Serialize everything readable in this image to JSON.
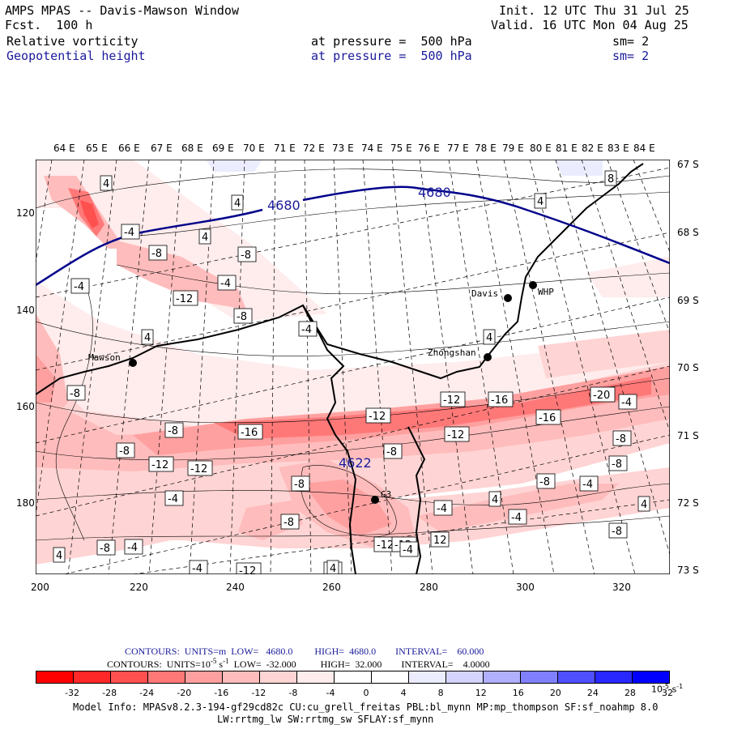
{
  "header": {
    "title": "AMPS MPAS -- Davis-Mawson Window",
    "forecast": "Fcst.  100 h",
    "init": "Init. 12 UTC Thu 31 Jul 25",
    "valid": "Valid. 16 UTC Mon 04 Aug 25",
    "field1_name": "Relative vorticity",
    "field1_level": "at pressure =  500 hPa",
    "field1_sm": "sm= 2",
    "field2_name": "Geopotential height",
    "field2_level": "at pressure =  500 hPa",
    "field2_sm": "sm= 2"
  },
  "axes": {
    "top_lon_labels": [
      "64 E",
      "65 E",
      "66 E",
      "67 E",
      "68 E",
      "69 E",
      "70 E",
      "71 E",
      "72 E",
      "73 E",
      "74 E",
      "75 E",
      "76 E",
      "77 E",
      "78 E",
      "79 E",
      "80 E",
      "81 E",
      "82 E",
      "83 E",
      "84 E"
    ],
    "right_lat_labels": [
      "67 S",
      "68 S",
      "69 S",
      "70 S",
      "71 S",
      "72 S",
      "73 S"
    ],
    "left_y_ticks": [
      "120",
      "140",
      "160",
      "180"
    ],
    "bottom_x_ticks": [
      "200",
      "220",
      "240",
      "260",
      "280",
      "300",
      "320"
    ]
  },
  "stations": [
    {
      "name": "Davis"
    },
    {
      "name": "WHP"
    },
    {
      "name": "Mawson"
    },
    {
      "name": "Zhongshan"
    },
    {
      "name": "G3"
    }
  ],
  "height_contour_labels": [
    "4680",
    "4680",
    "4622"
  ],
  "vorticity_labels": [
    "4",
    "4",
    "4",
    "-4",
    "-8",
    "4",
    "-4",
    "-12",
    "-4",
    "-8",
    "-4",
    "4",
    "4",
    "-8",
    "-12",
    "-16",
    "-8",
    "-12",
    "-16",
    "-20",
    "-16",
    "-8",
    "-12",
    "-8",
    "-8",
    "-12",
    "-12",
    "-4",
    "-8",
    "-8",
    "-4",
    "4",
    "-4",
    "-8",
    "-4",
    "-12",
    "-8",
    "-12",
    "-4",
    "4",
    "-8",
    "12",
    "-4",
    "-12",
    "-4",
    "-8",
    "-8",
    "4",
    "4",
    "-4",
    "8",
    "-4"
  ],
  "legend": {
    "contour_line1": "CONTOURS:  UNITS=m  LOW=   4680.0         HIGH=  4680.0        INTERVAL=    60.000",
    "contour_line2_prefix": "CONTOURS:  UNITS=10",
    "contour_line2_exp": "-5",
    "contour_line2_rest": " s",
    "contour_line2_exp2": "-1",
    "contour_line2_suffix": "  LOW=  -32.000          HIGH=  32.000        INTERVAL=    4.0000",
    "colorbar_ticks": [
      "-32",
      "-28",
      "-24",
      "-20",
      "-16",
      "-12",
      "-8",
      "-4",
      "0",
      "4",
      "8",
      "12",
      "16",
      "20",
      "24",
      "28",
      "32"
    ],
    "colorbar_units": "10",
    "colorbar_units_exp1": "-5",
    "colorbar_units_s": " s",
    "colorbar_units_exp2": "-1",
    "colors": [
      "#ff0000",
      "#ff2828",
      "#ff5050",
      "#ff7878",
      "#ffa0a0",
      "#ffbcbc",
      "#ffd4d4",
      "#ffecec",
      "#ffffff",
      "#ffffff",
      "#ececff",
      "#d4d4ff",
      "#b0b0ff",
      "#8080ff",
      "#5050ff",
      "#2828ff",
      "#0000ff"
    ]
  },
  "model_info_line1": "Model Info: MPASv8.2.3-194-gf29cd82c CU:cu_grell_freitas PBL:bl_mynn MP:mp_thompson SF:sf_noahmp 8.0",
  "model_info_line2": "LW:rrtmg_lw SW:rrtmg_sw SFLAY:sf_mynn"
}
